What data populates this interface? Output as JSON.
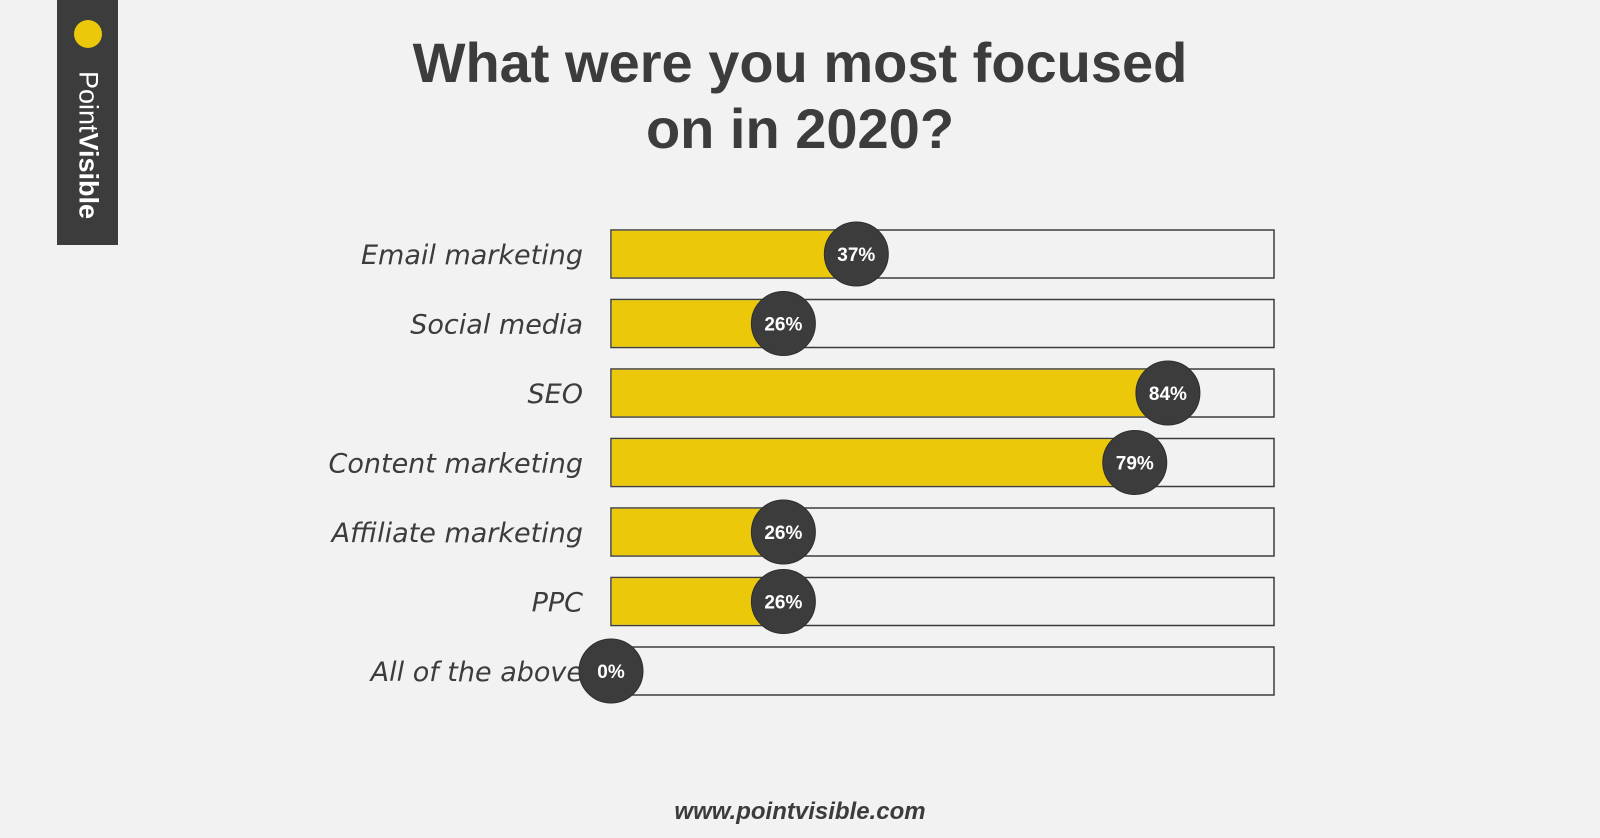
{
  "brand": {
    "name_light": "Point",
    "name_bold": "Visible"
  },
  "title_lines": [
    "What were you most focused",
    "on in 2020?"
  ],
  "footer_url": "www.pointvisible.com",
  "colors": {
    "background": "#f2f2f2",
    "bar_fill": "#ebc90a",
    "badge": "#3c3c3c",
    "track_border": "#3c3c3c",
    "text": "#3c3c3c"
  },
  "chart_data": {
    "type": "bar",
    "orientation": "horizontal",
    "title": "What were you most focused on in 2020?",
    "categories": [
      "Email marketing",
      "Social media",
      "SEO",
      "Content marketing",
      "Affiliate marketing",
      "PPC",
      "All of the above"
    ],
    "values": [
      37,
      26,
      84,
      79,
      26,
      26,
      0
    ],
    "value_labels": [
      "37%",
      "26%",
      "84%",
      "79%",
      "26%",
      "26%",
      "0%"
    ],
    "unit": "%",
    "xlim": [
      0,
      100
    ],
    "xlabel": "",
    "ylabel": "",
    "grid": false,
    "legend": "none"
  }
}
